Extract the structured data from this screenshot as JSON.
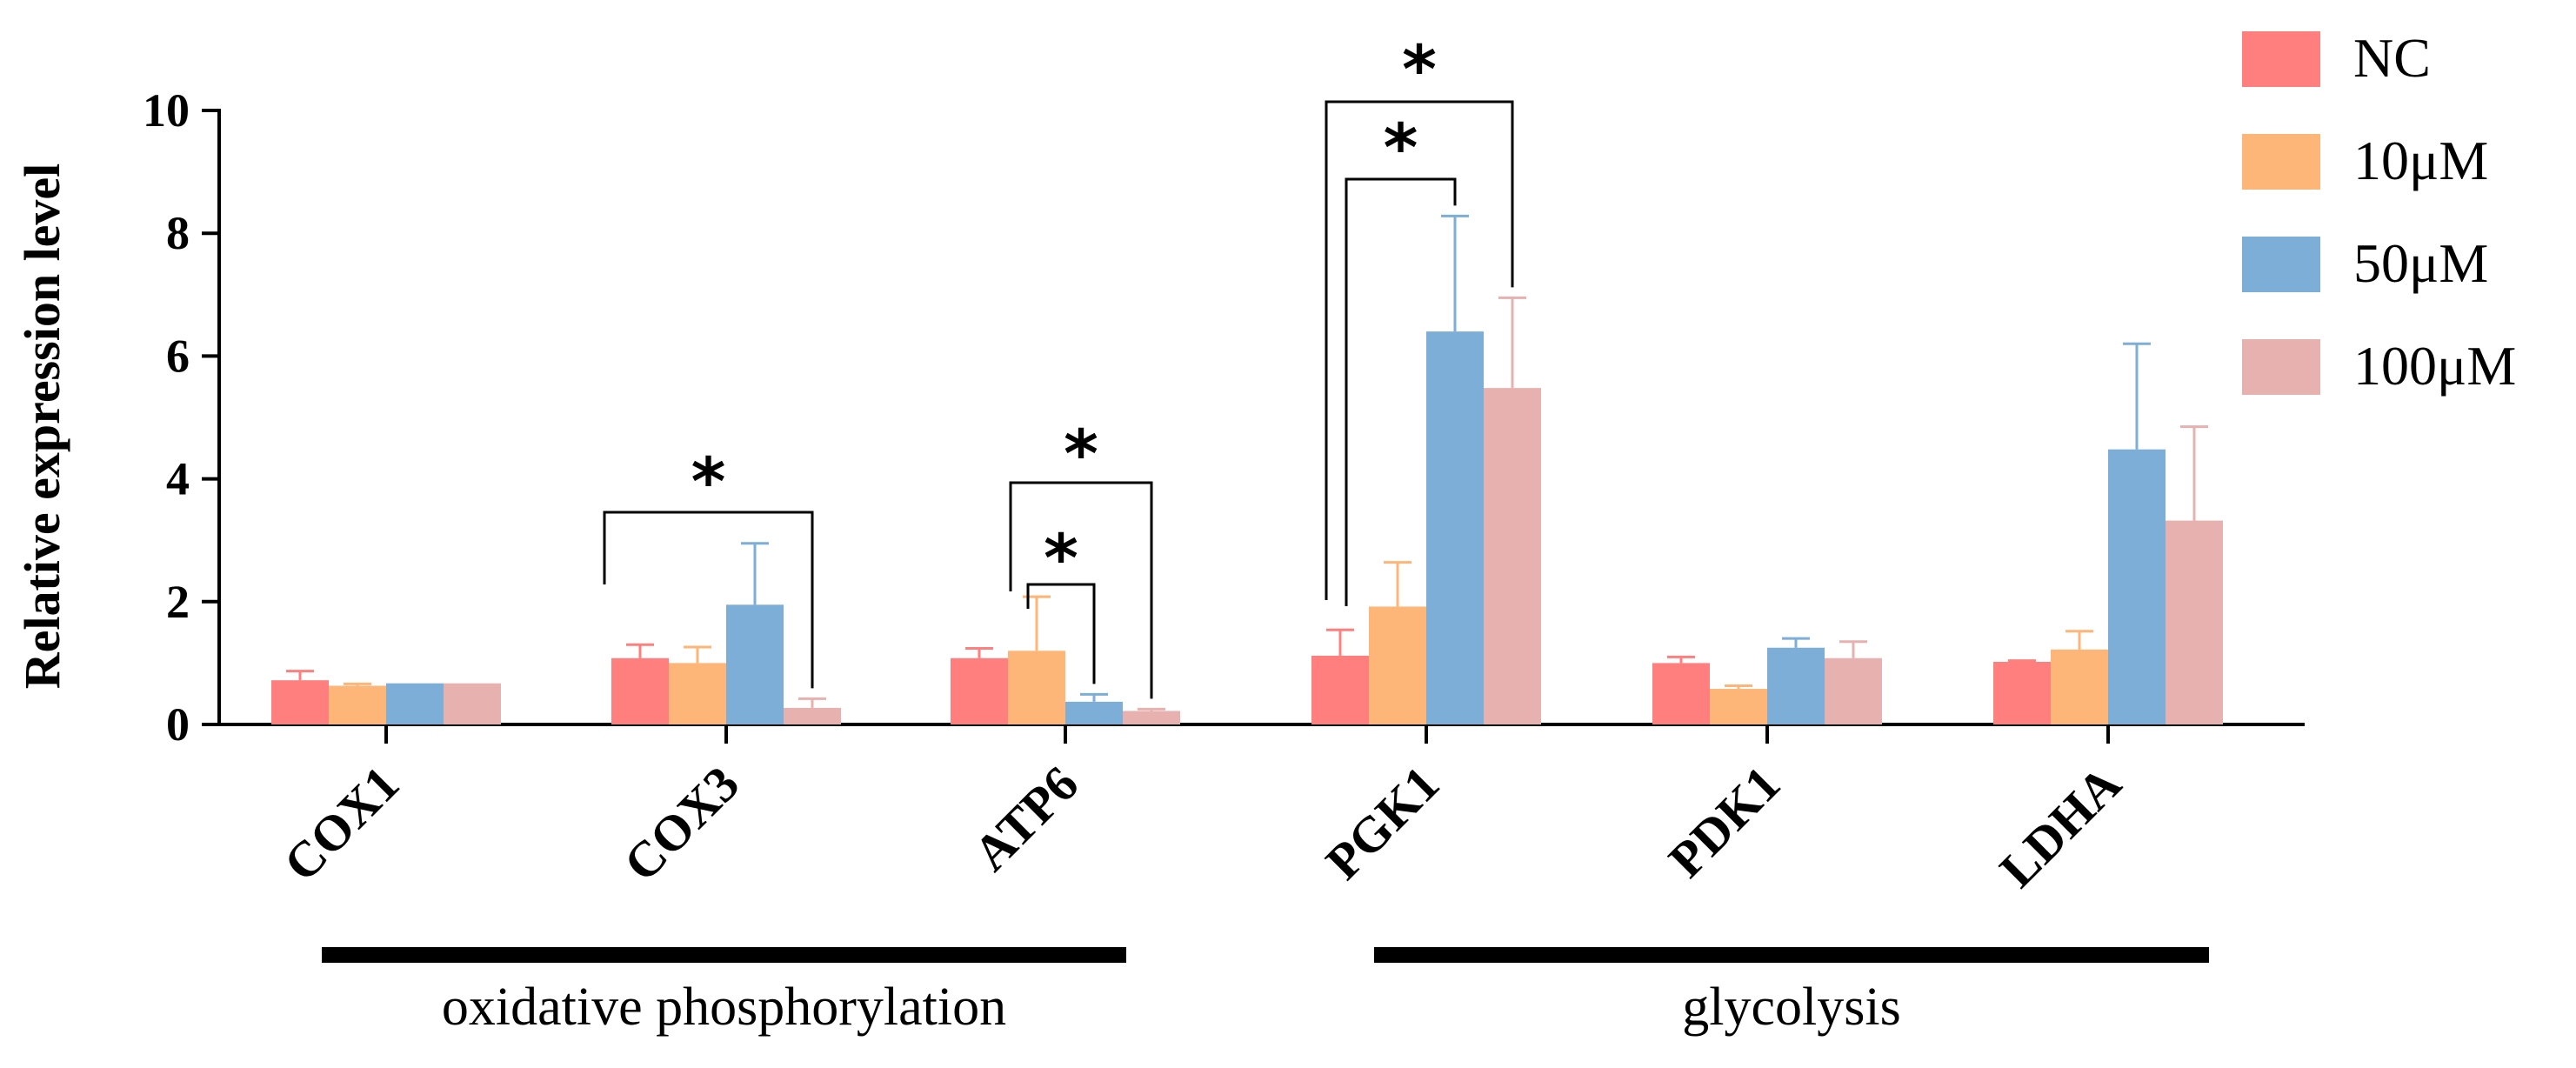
{
  "chart_data": {
    "type": "bar",
    "title": "",
    "xlabel": "",
    "ylabel": "Relative expression level",
    "ylim": [
      0,
      10
    ],
    "yticks": [
      0,
      2,
      4,
      6,
      8,
      10
    ],
    "categories": [
      "COX1",
      "COX3",
      "ATP6",
      "PGK1",
      "PDK1",
      "LDHA"
    ],
    "series": [
      {
        "name": "NC",
        "color": "#FF7F7F",
        "values": [
          0.72,
          1.08,
          1.08,
          1.12,
          1.0,
          1.02
        ],
        "errors": [
          0.15,
          0.22,
          0.16,
          0.42,
          0.1,
          0.02
        ]
      },
      {
        "name": "10μM",
        "color": "#FDB578",
        "values": [
          0.63,
          1.0,
          1.2,
          1.92,
          0.58,
          1.22
        ],
        "errors": [
          0.03,
          0.26,
          0.88,
          0.72,
          0.05,
          0.3
        ]
      },
      {
        "name": "50μM",
        "color": "#7DAED8",
        "values": [
          0.67,
          1.95,
          0.37,
          6.4,
          1.25,
          4.48
        ],
        "errors": [
          0.0,
          1.0,
          0.12,
          1.88,
          0.15,
          1.72
        ]
      },
      {
        "name": "100μM",
        "color": "#E6B1AF",
        "values": [
          0.67,
          0.27,
          0.22,
          5.48,
          1.08,
          3.32
        ],
        "errors": [
          0.0,
          0.15,
          0.03,
          1.47,
          0.27,
          1.53
        ]
      }
    ],
    "significance": [
      {
        "category": "COX3",
        "from_series": 0,
        "to_series": 3,
        "label": "*"
      },
      {
        "category": "ATP6",
        "from_series": 0,
        "to_series": 2,
        "label": "*"
      },
      {
        "category": "ATP6",
        "from_series": 0,
        "to_series": 3,
        "label": "*"
      },
      {
        "category": "PGK1",
        "from_series": 0,
        "to_series": 2,
        "label": "*"
      },
      {
        "category": "PGK1",
        "from_series": 0,
        "to_series": 3,
        "label": "*"
      }
    ],
    "category_groups": [
      {
        "label": "oxidative phosphorylation",
        "from": "COX1",
        "to": "ATP6"
      },
      {
        "label": "glycolysis",
        "from": "PGK1",
        "to": "LDHA"
      }
    ],
    "legend_position": "top-right"
  }
}
